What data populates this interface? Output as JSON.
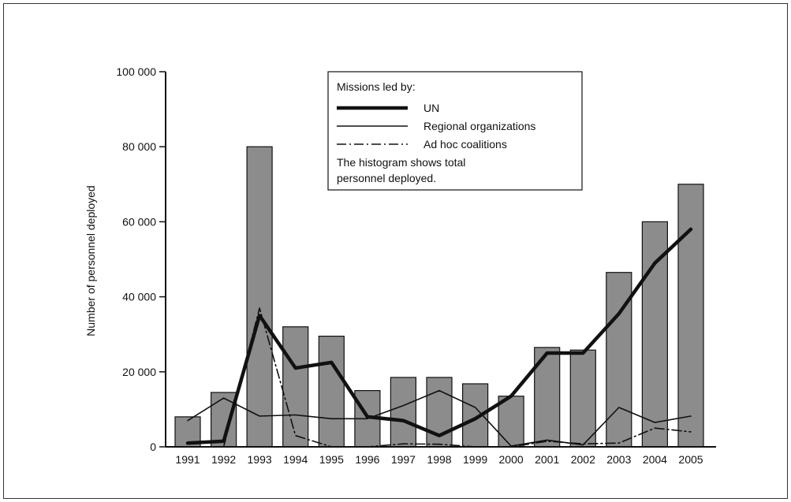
{
  "chart_data": {
    "type": "bar",
    "categories": [
      "1991",
      "1992",
      "1993",
      "1994",
      "1995",
      "1996",
      "1997",
      "1998",
      "1999",
      "2000",
      "2001",
      "2002",
      "2003",
      "2004",
      "2005"
    ],
    "ylabel": "Number of personnel deployed",
    "xlabel": "",
    "ylim": [
      0,
      100000
    ],
    "yticks": [
      0,
      20000,
      40000,
      60000,
      80000,
      100000
    ],
    "ytick_labels": [
      "0",
      "20 000",
      "40 000",
      "60 000",
      "80 000",
      "100 000"
    ],
    "bars": {
      "name": "",
      "color": "#8c8c8c",
      "values": [
        8000,
        14500,
        80000,
        32000,
        29500,
        15000,
        18500,
        18500,
        16800,
        13500,
        26500,
        25800,
        46500,
        60000,
        70000
      ]
    },
    "series": [
      {
        "name": "UN",
        "style": "thick",
        "values": [
          1000,
          1500,
          35000,
          21000,
          22500,
          8000,
          7000,
          3000,
          7500,
          13500,
          25000,
          25000,
          35500,
          49000,
          58000
        ]
      },
      {
        "name": "Regional organizations",
        "style": "thin",
        "values": [
          7000,
          13000,
          8200,
          8500,
          7500,
          7500,
          11000,
          15000,
          10500,
          200,
          1800,
          500,
          10500,
          6500,
          8200
        ]
      },
      {
        "name": "Ad hoc coalitions",
        "style": "dashdot",
        "values": [
          0,
          0,
          37000,
          3000,
          0,
          0,
          800,
          700,
          0,
          0,
          1500,
          800,
          1000,
          5000,
          4000
        ]
      }
    ],
    "legend": {
      "title": "Missions led by:",
      "placement": "top-center",
      "note_lines": [
        "The histogram shows total",
        "personnel deployed."
      ]
    }
  }
}
